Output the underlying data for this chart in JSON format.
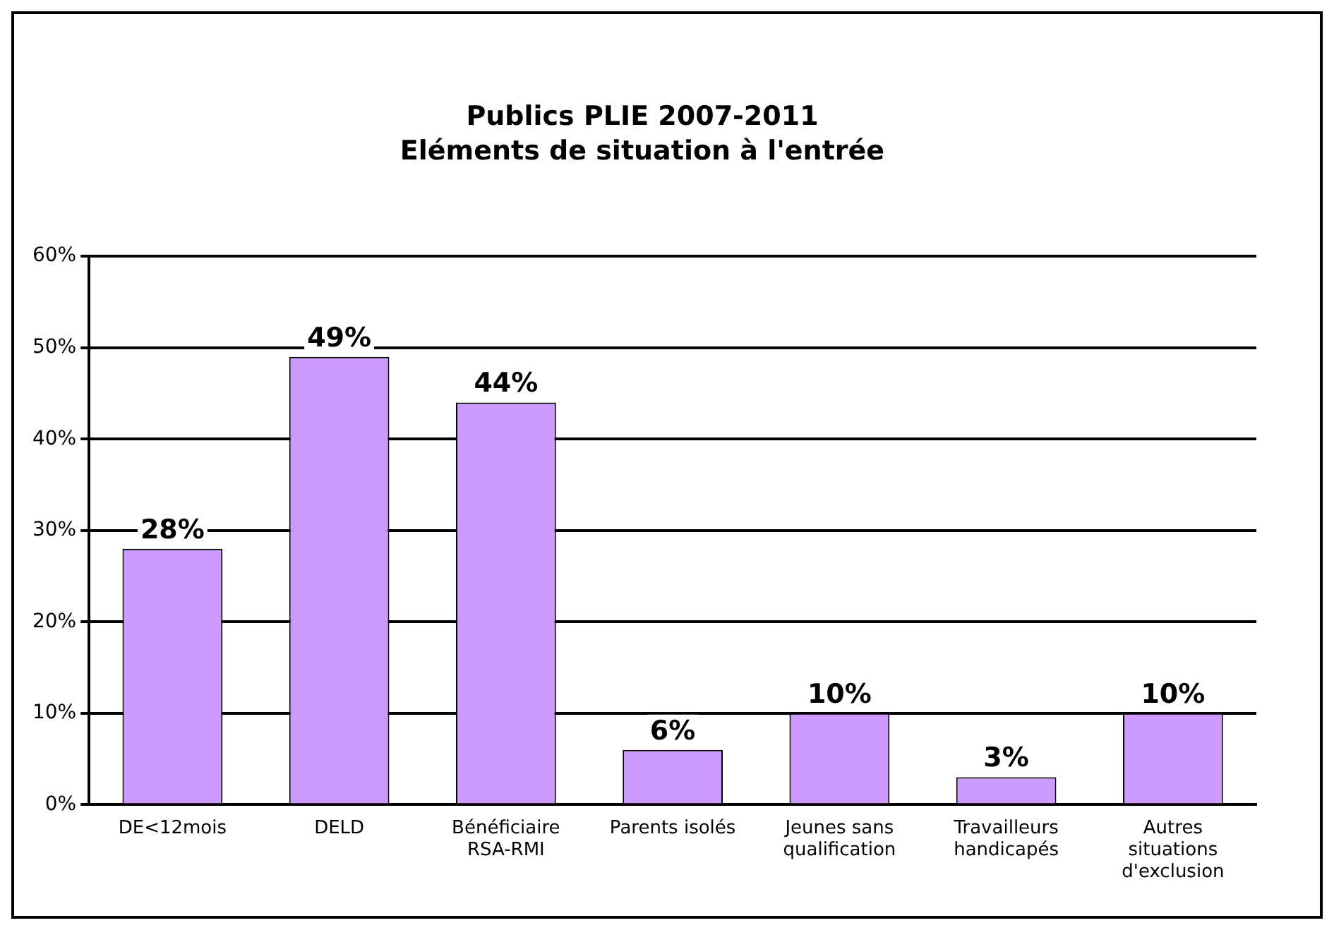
{
  "chart_data": {
    "type": "bar",
    "title": "Publics PLIE 2007-2011",
    "subtitle": "Eléments de situation à l'entrée",
    "categories": [
      "DE<12mois",
      "DELD",
      "Bénéficiaire RSA-RMI",
      "Parents isolés",
      "Jeunes sans qualification",
      "Travailleurs handicapés",
      "Autres situations d'exclusion"
    ],
    "values": [
      28,
      49,
      44,
      6,
      10,
      3,
      10
    ],
    "value_labels": [
      "28%",
      "49%",
      "44%",
      "6%",
      "10%",
      "3%",
      "10%"
    ],
    "color": "#cc99ff",
    "ylim": [
      0,
      60
    ],
    "yticks": [
      {
        "value": 0,
        "label": "0%"
      },
      {
        "value": 10,
        "label": "10%"
      },
      {
        "value": 20,
        "label": "20%"
      },
      {
        "value": 30,
        "label": "30%"
      },
      {
        "value": 40,
        "label": "40%"
      },
      {
        "value": 50,
        "label": "50%"
      },
      {
        "value": 60,
        "label": "60%"
      }
    ],
    "grid": "y",
    "legend": false
  }
}
